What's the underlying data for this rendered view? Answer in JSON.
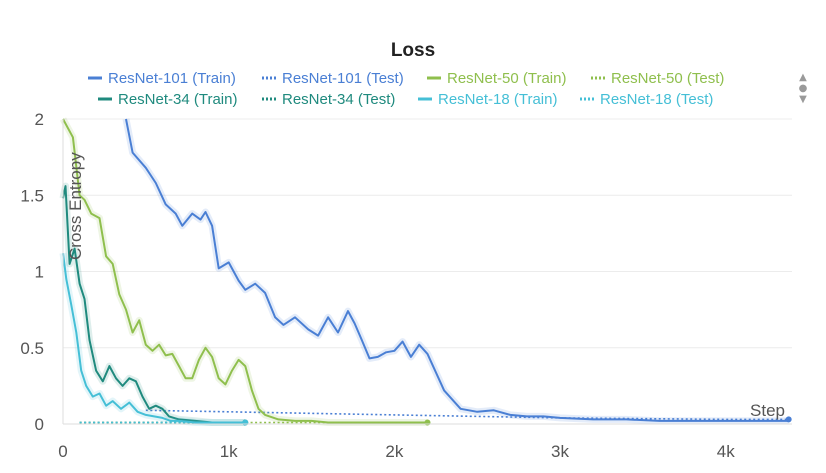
{
  "chart_data": {
    "type": "line",
    "title": "Loss",
    "xlabel": "Step",
    "ylabel": "Cross Entropy",
    "xlim": [
      0,
      4400
    ],
    "ylim": [
      0,
      2
    ],
    "xticks": [
      0,
      1000,
      2000,
      3000,
      4000
    ],
    "xtick_labels": [
      "0",
      "1k",
      "2k",
      "3k",
      "4k"
    ],
    "yticks": [
      0,
      0.5,
      1,
      1.5,
      2
    ],
    "ytick_labels": [
      "0",
      "0.5",
      "1",
      "1.5",
      "2"
    ],
    "grid": true,
    "legend_position": "top",
    "series": [
      {
        "name": "ResNet-101 (Train)",
        "style": "solid",
        "color": "#4a7fd4",
        "x": [
          380,
          420,
          500,
          560,
          620,
          680,
          720,
          780,
          830,
          860,
          900,
          940,
          1000,
          1060,
          1100,
          1160,
          1220,
          1280,
          1330,
          1400,
          1480,
          1540,
          1600,
          1660,
          1720,
          1760,
          1800,
          1850,
          1900,
          1950,
          2000,
          2050,
          2100,
          2150,
          2200,
          2300,
          2400,
          2500,
          2600,
          2700,
          2800,
          2900,
          3000,
          3200,
          3400,
          3600,
          3800,
          4000,
          4200,
          4380
        ],
        "y": [
          2.0,
          1.78,
          1.68,
          1.58,
          1.44,
          1.38,
          1.3,
          1.38,
          1.34,
          1.39,
          1.3,
          1.02,
          1.06,
          0.94,
          0.88,
          0.92,
          0.86,
          0.7,
          0.65,
          0.7,
          0.62,
          0.58,
          0.7,
          0.6,
          0.74,
          0.66,
          0.56,
          0.43,
          0.44,
          0.47,
          0.48,
          0.54,
          0.44,
          0.52,
          0.46,
          0.22,
          0.1,
          0.08,
          0.09,
          0.06,
          0.05,
          0.05,
          0.04,
          0.03,
          0.03,
          0.02,
          0.02,
          0.02,
          0.02,
          0.02
        ]
      },
      {
        "name": "ResNet-101 (Test)",
        "style": "dotted",
        "color": "#4a7fd4",
        "x": [
          500,
          1000,
          2000,
          3000,
          4000,
          4380
        ],
        "y": [
          0.09,
          0.08,
          0.06,
          0.04,
          0.03,
          0.03
        ]
      },
      {
        "name": "ResNet-50 (Train)",
        "style": "solid",
        "color": "#8fbf4d",
        "x": [
          0,
          60,
          100,
          130,
          170,
          220,
          260,
          300,
          340,
          380,
          420,
          460,
          500,
          540,
          580,
          620,
          660,
          700,
          740,
          780,
          820,
          860,
          900,
          940,
          980,
          1020,
          1060,
          1100,
          1140,
          1180,
          1220,
          1300,
          1400,
          1500,
          1600,
          1800,
          2000,
          2200
        ],
        "y": [
          2.0,
          1.88,
          1.5,
          1.47,
          1.38,
          1.35,
          1.1,
          1.05,
          0.85,
          0.75,
          0.6,
          0.68,
          0.52,
          0.48,
          0.52,
          0.45,
          0.46,
          0.38,
          0.3,
          0.3,
          0.42,
          0.5,
          0.44,
          0.3,
          0.26,
          0.35,
          0.42,
          0.38,
          0.22,
          0.1,
          0.06,
          0.03,
          0.02,
          0.02,
          0.01,
          0.01,
          0.01,
          0.01
        ]
      },
      {
        "name": "ResNet-50 (Test)",
        "style": "dotted",
        "color": "#8fbf4d",
        "x": [
          100,
          1000,
          2200
        ],
        "y": [
          0.01,
          0.01,
          0.01
        ]
      },
      {
        "name": "ResNet-34 (Train)",
        "style": "solid",
        "color": "#1f8a7e",
        "x": [
          0,
          15,
          40,
          70,
          100,
          130,
          160,
          200,
          240,
          280,
          320,
          360,
          400,
          440,
          480,
          520,
          560,
          600,
          640,
          700,
          800,
          900,
          1000,
          1100
        ],
        "y": [
          1.48,
          1.56,
          1.05,
          1.15,
          0.92,
          0.82,
          0.55,
          0.35,
          0.28,
          0.38,
          0.3,
          0.25,
          0.3,
          0.28,
          0.18,
          0.1,
          0.12,
          0.1,
          0.05,
          0.03,
          0.02,
          0.01,
          0.01,
          0.01
        ]
      },
      {
        "name": "ResNet-34 (Test)",
        "style": "dotted",
        "color": "#1f8a7e",
        "x": [
          100,
          600,
          1100
        ],
        "y": [
          0.01,
          0.01,
          0.01
        ]
      },
      {
        "name": "ResNet-18 (Train)",
        "style": "solid",
        "color": "#45bfd6",
        "x": [
          0,
          20,
          50,
          80,
          110,
          140,
          180,
          220,
          260,
          300,
          350,
          400,
          450,
          500,
          550,
          600,
          650,
          700,
          800,
          900,
          1000,
          1100
        ],
        "y": [
          1.12,
          0.95,
          0.78,
          0.6,
          0.35,
          0.25,
          0.18,
          0.2,
          0.12,
          0.15,
          0.1,
          0.14,
          0.08,
          0.06,
          0.05,
          0.04,
          0.02,
          0.02,
          0.01,
          0.01,
          0.01,
          0.01
        ]
      },
      {
        "name": "ResNet-18 (Test)",
        "style": "dotted",
        "color": "#45bfd6",
        "x": [
          100,
          600,
          1100
        ],
        "y": [
          0.01,
          0.01,
          0.01
        ]
      }
    ]
  },
  "legend_scroll_icon": "scroll-arrows-icon"
}
